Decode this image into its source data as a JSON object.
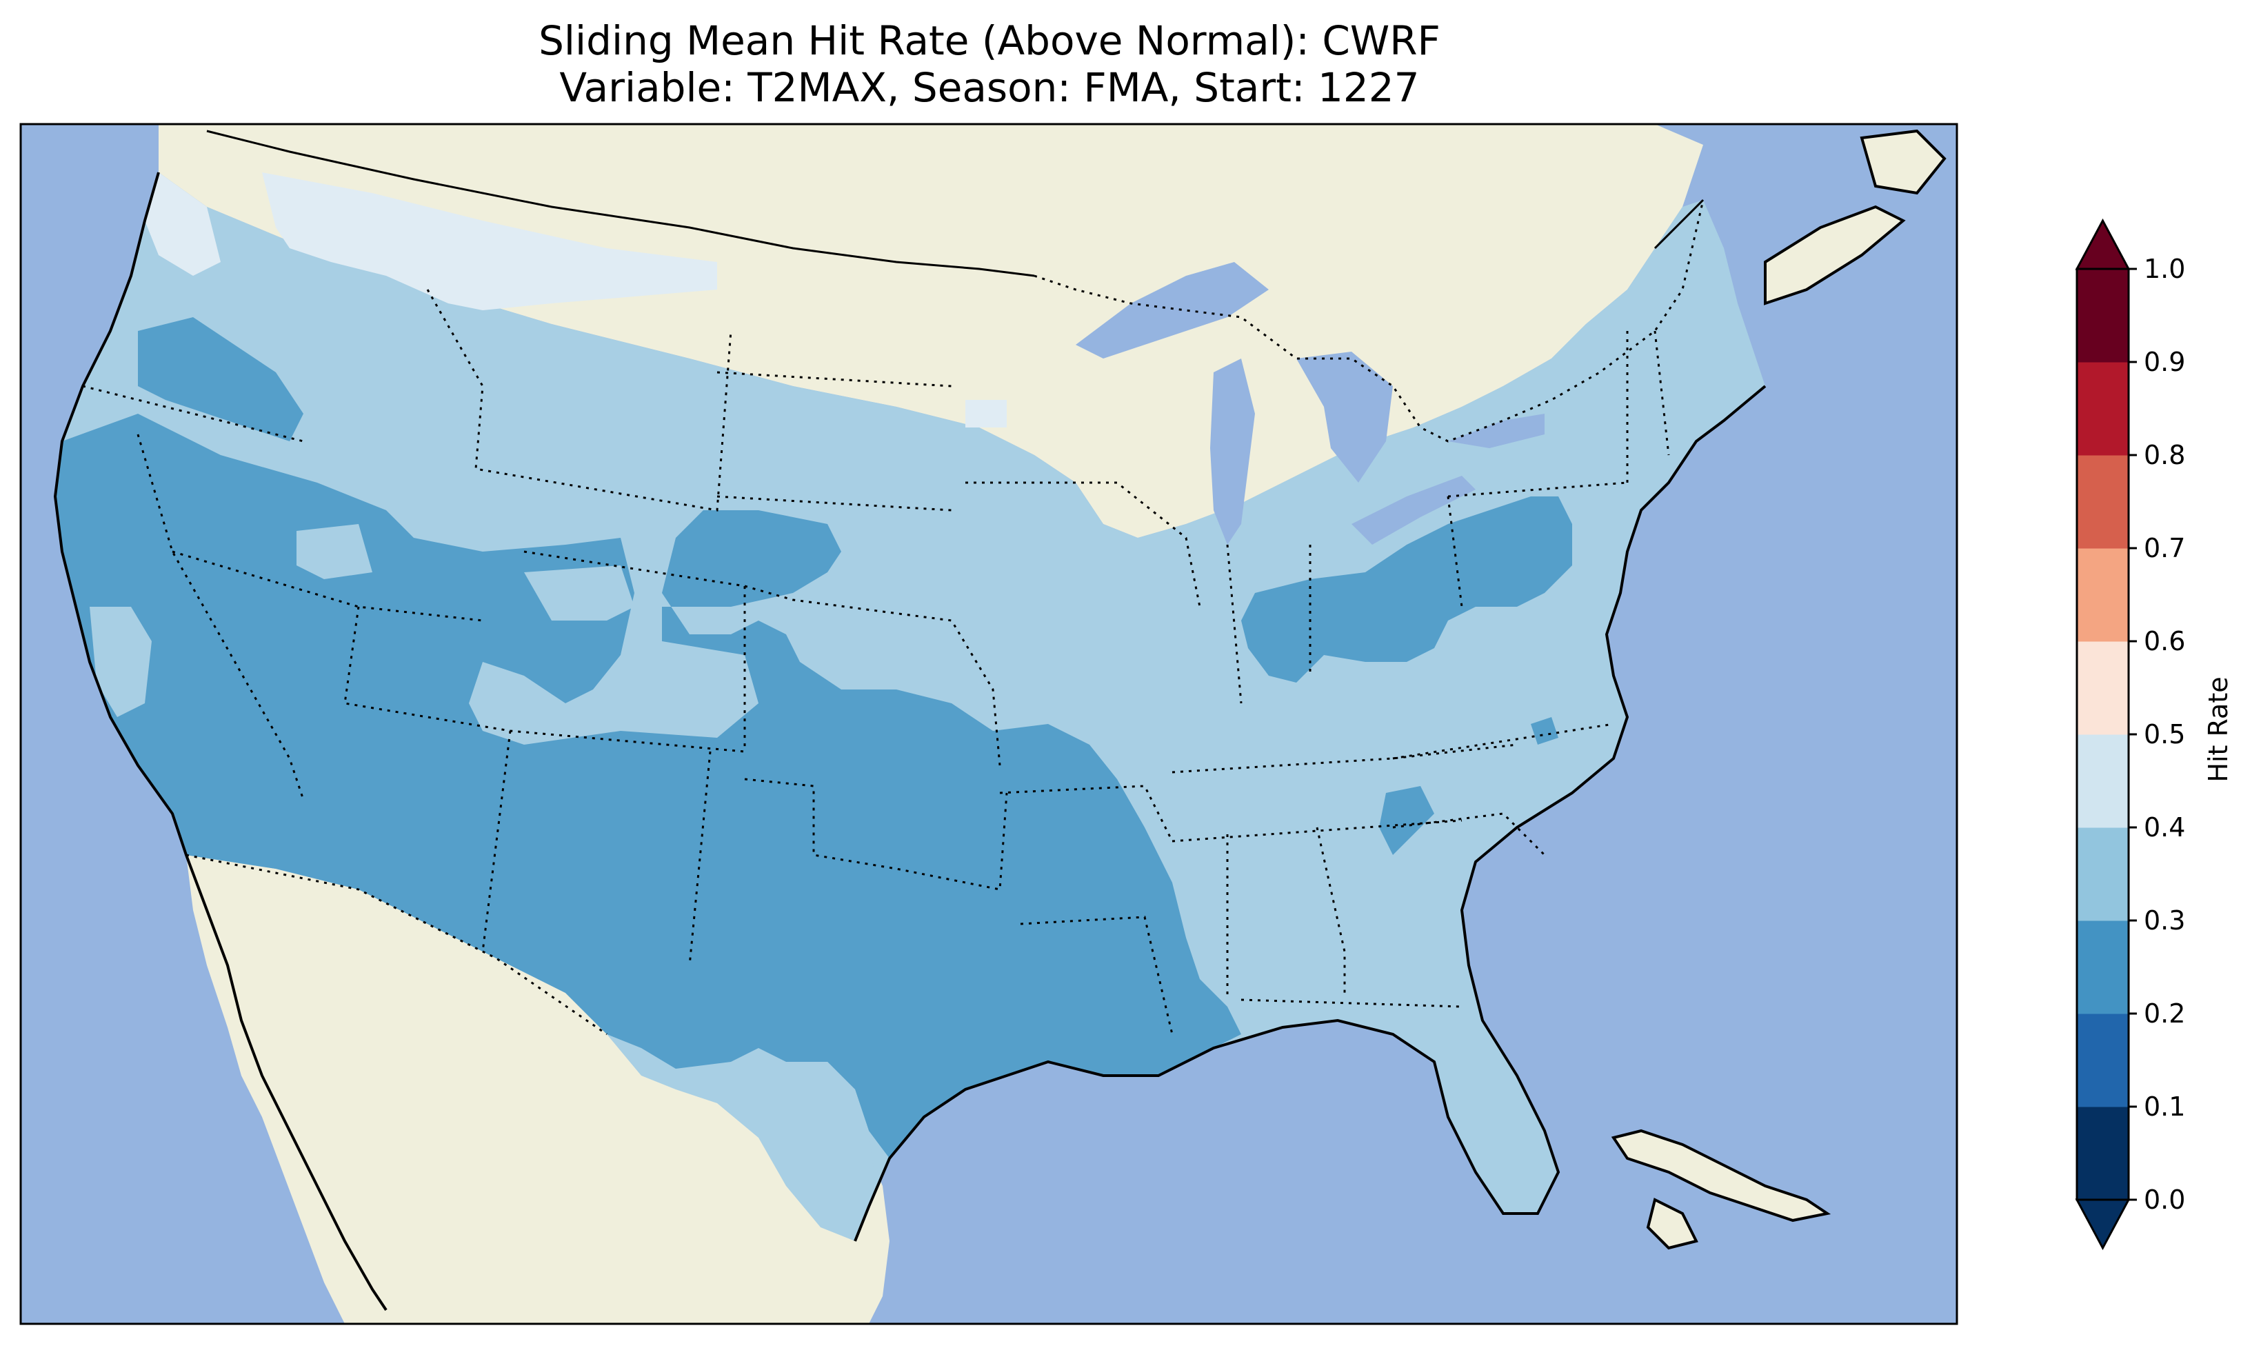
{
  "title": {
    "line1": "Sliding Mean Hit Rate (Above Normal): CWRF",
    "line2": "Variable: T2MAX, Season: FMA, Start: 1227"
  },
  "colors": {
    "ocean": "#95b4e0",
    "land": "#f0efdc",
    "lakes": "#95b4e0",
    "class_02_03": "#559fca",
    "class_03_04": "#a8cfe4",
    "class_04_05": "#e0ecf4"
  },
  "colorbar": {
    "label": "Hit Rate",
    "ticks": [
      "0.0",
      "0.1",
      "0.2",
      "0.3",
      "0.4",
      "0.5",
      "0.6",
      "0.7",
      "0.8",
      "0.9",
      "1.0"
    ],
    "colors": [
      "#053061",
      "#2166ac",
      "#4393c3",
      "#92c5de",
      "#d1e5f0",
      "#fbe4d8",
      "#f4a582",
      "#d6604d",
      "#b2182b",
      "#67001f"
    ],
    "under_color": "#053061",
    "over_color": "#67001f"
  }
}
